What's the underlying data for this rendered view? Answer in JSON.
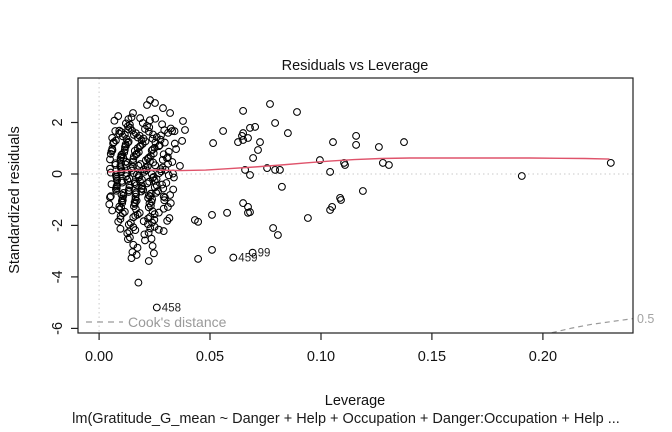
{
  "chart_data": {
    "type": "scatter",
    "title": "Residuals vs Leverage",
    "xlabel": "Leverage",
    "ylabel": "Standardized residuals",
    "caption": "lm(Gratitude_G_mean ~ Danger + Help + Occupation + Danger:Occupation + Help ...",
    "xlim": [
      -0.0095,
      0.2406
    ],
    "ylim": [
      -6.18,
      3.73
    ],
    "x_ticks": [
      0,
      0.05,
      0.1,
      0.15,
      0.2
    ],
    "x_tick_labels": [
      "0.00",
      "0.05",
      "0.10",
      "0.15",
      "0.20"
    ],
    "y_ticks": [
      2,
      0,
      -2,
      -4,
      -6
    ],
    "y_tick_labels": [
      "2",
      "0",
      "-2",
      "-4",
      "-6"
    ],
    "grid": false,
    "background": "#ffffff",
    "point_color": "#000000",
    "reference_lines": {
      "horizontal_at": 0,
      "vertical_at": 0,
      "color": "#c9c9c9",
      "style": "dotted"
    },
    "smoother": {
      "name": "loess-smoother",
      "color": "#df536b",
      "points": [
        [
          0.004,
          0.08
        ],
        [
          0.014,
          0.14
        ],
        [
          0.025,
          0.15
        ],
        [
          0.037,
          0.13
        ],
        [
          0.048,
          0.15
        ],
        [
          0.059,
          0.21
        ],
        [
          0.07,
          0.27
        ],
        [
          0.082,
          0.35
        ],
        [
          0.093,
          0.43
        ],
        [
          0.104,
          0.5
        ],
        [
          0.115,
          0.56
        ],
        [
          0.127,
          0.6
        ],
        [
          0.14,
          0.62
        ],
        [
          0.168,
          0.62
        ],
        [
          0.194,
          0.62
        ],
        [
          0.208,
          0.61
        ],
        [
          0.219,
          0.6
        ],
        [
          0.23,
          0.58
        ]
      ]
    },
    "cooks_distance": {
      "legend": "Cook's distance",
      "level_label": "0.5",
      "color": "#9a9a9a",
      "contour_0_5": [
        [
          0.204,
          -6.17
        ],
        [
          0.213,
          -5.99
        ],
        [
          0.222,
          -5.84
        ],
        [
          0.2406,
          -5.62
        ]
      ]
    },
    "labeled_points": [
      {
        "label": "458",
        "x": 0.026,
        "y": -5.19
      },
      {
        "label": "459",
        "x": 0.0605,
        "y": -3.25
      },
      {
        "label": "99",
        "x": 0.0692,
        "y": -3.06
      }
    ],
    "points": [
      [
        0.0216,
        2.68
      ],
      [
        0.0252,
        2.76
      ],
      [
        0.023,
        2.87
      ],
      [
        0.0288,
        2.56
      ],
      [
        0.0153,
        2.37
      ],
      [
        0.0185,
        2.17
      ],
      [
        0.0086,
        2.25
      ],
      [
        0.032,
        2.37
      ],
      [
        0.0378,
        2.06
      ],
      [
        0.0649,
        2.45
      ],
      [
        0.077,
        2.72
      ],
      [
        0.0892,
        2.41
      ],
      [
        0.0559,
        1.67
      ],
      [
        0.0644,
        1.48
      ],
      [
        0.0649,
        1.32
      ],
      [
        0.0514,
        1.2
      ],
      [
        0.0387,
        1.71
      ],
      [
        0.0329,
        1.67
      ],
      [
        0.0649,
        1.59
      ],
      [
        0.068,
        1.79
      ],
      [
        0.0703,
        1.83
      ],
      [
        0.0626,
        1.24
      ],
      [
        0.0671,
        1.4
      ],
      [
        0.0725,
        1.24
      ],
      [
        0.0793,
        1.98
      ],
      [
        0.0851,
        1.59
      ],
      [
        0.0716,
        0.93
      ],
      [
        0.0694,
        0.62
      ],
      [
        0.0757,
        0.23
      ],
      [
        0.0793,
        0.16
      ],
      [
        0.0815,
        0.16
      ],
      [
        0.0658,
        0.16
      ],
      [
        0.068,
        -0.04
      ],
      [
        0.0824,
        -0.5
      ],
      [
        0.0649,
        -1.13
      ],
      [
        0.0671,
        -1.28
      ],
      [
        0.068,
        -1.48
      ],
      [
        0.0784,
        -2.1
      ],
      [
        0.0806,
        -2.37
      ],
      [
        0.0941,
        -1.71
      ],
      [
        0.1041,
        -1.4
      ],
      [
        0.0446,
        -1.86
      ],
      [
        0.0509,
        -1.59
      ],
      [
        0.0671,
        -1.51
      ],
      [
        0.0446,
        -3.3
      ],
      [
        0.0509,
        -2.95
      ],
      [
        0.0577,
        -1.51
      ],
      [
        0.0432,
        -1.79
      ],
      [
        0.0177,
        -4.22
      ],
      [
        0.1104,
        0.43
      ],
      [
        0.1158,
        1.48
      ],
      [
        0.1158,
        1.13
      ],
      [
        0.1261,
        1.05
      ],
      [
        0.1279,
        0.43
      ],
      [
        0.1306,
        0.35
      ],
      [
        0.1374,
        1.24
      ],
      [
        0.109,
        -1.01
      ],
      [
        0.1189,
        -0.66
      ],
      [
        0.1905,
        -0.08
      ],
      [
        0.2306,
        0.43
      ],
      [
        0.1054,
        1.24
      ],
      [
        0.0995,
        0.54
      ],
      [
        0.1108,
        0.35
      ],
      [
        0.1041,
        0.08
      ],
      [
        0.105,
        -1.28
      ],
      [
        0.1086,
        -0.93
      ]
    ],
    "cluster_rows": [
      {
        "r": 2.15,
        "L": [
          0.009,
          0.0125,
          0.016,
          0.0215,
          0.026
        ]
      },
      {
        "r": 1.9,
        "L": [
          0.01,
          0.013,
          0.016,
          0.019,
          0.023,
          0.027
        ]
      },
      {
        "r": 1.75,
        "L": [
          0.008,
          0.011,
          0.014,
          0.017,
          0.02,
          0.024,
          0.028,
          0.033
        ]
      },
      {
        "r": 1.6,
        "L": [
          0.007,
          0.009,
          0.012,
          0.015,
          0.018,
          0.021,
          0.025,
          0.029,
          0.034
        ]
      },
      {
        "r": 1.45,
        "L": [
          0.008,
          0.01,
          0.013,
          0.016,
          0.019,
          0.022,
          0.026,
          0.03
        ]
      },
      {
        "r": 1.3,
        "L": [
          0.006,
          0.009,
          0.011,
          0.014,
          0.017,
          0.02,
          0.023,
          0.027,
          0.031,
          0.036
        ]
      },
      {
        "r": 1.15,
        "L": [
          0.007,
          0.01,
          0.012,
          0.015,
          0.018,
          0.021,
          0.024,
          0.028,
          0.032
        ]
      },
      {
        "r": 1.0,
        "L": [
          0.006,
          0.008,
          0.011,
          0.013,
          0.016,
          0.019,
          0.022,
          0.025,
          0.029,
          0.034
        ]
      },
      {
        "r": 0.85,
        "L": [
          0.007,
          0.009,
          0.012,
          0.014,
          0.017,
          0.02,
          0.023,
          0.026,
          0.03
        ]
      },
      {
        "r": 0.7,
        "L": [
          0.006,
          0.008,
          0.01,
          0.013,
          0.015,
          0.018,
          0.021,
          0.024,
          0.027,
          0.031
        ]
      },
      {
        "r": 0.55,
        "L": [
          0.007,
          0.009,
          0.011,
          0.014,
          0.016,
          0.019,
          0.022,
          0.025,
          0.028,
          0.032
        ]
      },
      {
        "r": 0.4,
        "L": [
          0.006,
          0.008,
          0.01,
          0.012,
          0.015,
          0.017,
          0.02,
          0.023,
          0.026,
          0.029,
          0.033
        ]
      },
      {
        "r": 0.25,
        "L": [
          0.007,
          0.009,
          0.011,
          0.013,
          0.016,
          0.018,
          0.021,
          0.024,
          0.027,
          0.03,
          0.035
        ]
      },
      {
        "r": 0.1,
        "L": [
          0.006,
          0.008,
          0.01,
          0.012,
          0.014,
          0.017,
          0.019,
          0.022,
          0.025,
          0.028,
          0.032
        ]
      },
      {
        "r": -0.05,
        "L": [
          0.007,
          0.009,
          0.011,
          0.013,
          0.015,
          0.018,
          0.02,
          0.023,
          0.026,
          0.03,
          0.034
        ]
      },
      {
        "r": -0.2,
        "L": [
          0.006,
          0.008,
          0.01,
          0.012,
          0.015,
          0.017,
          0.02,
          0.022,
          0.025,
          0.028,
          0.033
        ]
      },
      {
        "r": -0.35,
        "L": [
          0.007,
          0.009,
          0.011,
          0.014,
          0.016,
          0.019,
          0.021,
          0.024,
          0.027,
          0.031
        ]
      },
      {
        "r": -0.5,
        "L": [
          0.006,
          0.008,
          0.01,
          0.013,
          0.015,
          0.018,
          0.02,
          0.023,
          0.026,
          0.031
        ]
      },
      {
        "r": -0.65,
        "L": [
          0.007,
          0.009,
          0.012,
          0.014,
          0.017,
          0.019,
          0.022,
          0.025,
          0.028,
          0.032
        ]
      },
      {
        "r": -0.8,
        "L": [
          0.006,
          0.008,
          0.011,
          0.013,
          0.016,
          0.018,
          0.021,
          0.024,
          0.027,
          0.032
        ]
      },
      {
        "r": -0.95,
        "L": [
          0.007,
          0.01,
          0.012,
          0.015,
          0.017,
          0.02,
          0.023,
          0.026,
          0.029
        ]
      },
      {
        "r": -1.1,
        "L": [
          0.006,
          0.009,
          0.011,
          0.014,
          0.016,
          0.019,
          0.022,
          0.025,
          0.028,
          0.033
        ]
      },
      {
        "r": -1.3,
        "L": [
          0.007,
          0.009,
          0.012,
          0.015,
          0.018,
          0.021,
          0.024,
          0.027,
          0.031
        ]
      },
      {
        "r": -1.5,
        "L": [
          0.008,
          0.01,
          0.013,
          0.016,
          0.019,
          0.022,
          0.025,
          0.029
        ]
      },
      {
        "r": -1.7,
        "L": [
          0.009,
          0.011,
          0.014,
          0.017,
          0.02,
          0.023,
          0.027,
          0.031
        ]
      },
      {
        "r": -1.9,
        "L": [
          0.01,
          0.012,
          0.015,
          0.018,
          0.022,
          0.026,
          0.03
        ]
      },
      {
        "r": -2.1,
        "L": [
          0.011,
          0.014,
          0.017,
          0.021,
          0.025,
          0.029
        ]
      },
      {
        "r": -2.3,
        "L": [
          0.012,
          0.015,
          0.019,
          0.023,
          0.027
        ]
      },
      {
        "r": -2.5,
        "L": [
          0.013,
          0.016,
          0.02,
          0.025
        ]
      },
      {
        "r": -2.8,
        "L": [
          0.014,
          0.018,
          0.022
        ]
      },
      {
        "r": -3.1,
        "L": [
          0.015,
          0.019,
          0.024
        ]
      },
      {
        "r": -3.35,
        "L": [
          0.016,
          0.021
        ]
      }
    ]
  }
}
